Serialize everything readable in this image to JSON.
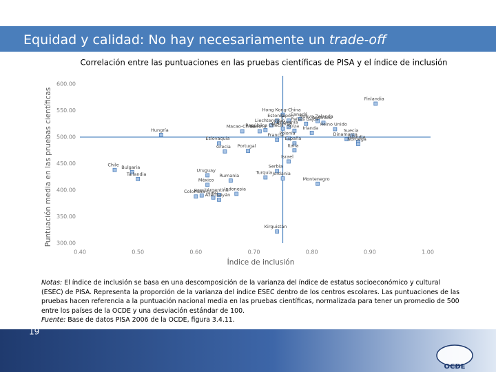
{
  "slide_title": "Equidad y calidad: No hay necesariamente un",
  "slide_title_italic": "trade-off",
  "notes": {
    "label": "Notas:",
    "text": " El índice de inclusión se basa en una descomposición de la varianza del índice de estatus socioeconómico y cultural (ESEC) de PISA. Representa la proporción de la varianza del índice ESEC dentro de los centros escolares. Las puntuaciones de las pruebas hacen referencia a la puntuación nacional media en las pruebas científicas, normalizada para tener un promedio de 500 entre los países de la OCDE y una desviación estándar de 100.",
    "source_label": "Fuente:",
    "source_text": " Base de datos PISA 2006 de la OCDE, figura 3.4.11."
  },
  "page_number": "19",
  "logo_text": "OCDE",
  "chart_data": {
    "type": "scatter",
    "title": "Correlación entre las puntuaciones en las pruebas científicas de PISA y el índice de inclusión",
    "x_label": "Índice de inclusión",
    "y_label": "Puntuación media en las pruebas científicas",
    "xlim": [
      0.4,
      1.0
    ],
    "ylim": [
      300,
      600
    ],
    "xticks": [
      {
        "value": 0.4,
        "label": "0.40"
      },
      {
        "value": 0.5,
        "label": "0.50"
      },
      {
        "value": 0.6,
        "label": "0.60"
      },
      {
        "value": 0.7,
        "label": "0.70"
      },
      {
        "value": 0.8,
        "label": "0.80"
      },
      {
        "value": 0.9,
        "label": "0.90"
      },
      {
        "value": 1.0,
        "label": "1.00"
      }
    ],
    "yticks": [
      {
        "value": 300,
        "label": "300.00"
      },
      {
        "value": 350,
        "label": "350.00"
      },
      {
        "value": 400,
        "label": "400.00"
      },
      {
        "value": 450,
        "label": "450.00"
      },
      {
        "value": 500,
        "label": "500.00"
      },
      {
        "value": 550,
        "label": "550.00"
      },
      {
        "value": 600,
        "label": "600.00"
      }
    ],
    "reference_lines": {
      "x": 0.75,
      "y": 500,
      "color": "#2e6fb5"
    },
    "color": "#4f81bd",
    "labels": [
      "Finlandia",
      "Hong Kong-China",
      "Estonia",
      "Japón",
      "Canadá",
      "Nueva Zelanda",
      "Australia",
      "Países Bajos",
      "Liechtenstein",
      "Eslovenia",
      "Alemania",
      "Reino Unido",
      "República Checa",
      "Suiza",
      "Austria",
      "Macao-China",
      "Irlanda",
      "Hungría",
      "Suecia",
      "Polonia",
      "Dinamarca",
      "Francia",
      "Islandia",
      "Eslovaquia",
      "España",
      "Noruega",
      "Italia",
      "Portugal",
      "Grecia",
      "Israel",
      "Chile",
      "Serbia",
      "Bulgaria",
      "Uruguay",
      "Turquía",
      "Jordania",
      "Tailandia",
      "Rumanía",
      "Montenegro",
      "México",
      "Indonesia",
      "Argentina",
      "Brasil",
      "Colombia",
      "Túnez",
      "Azerbaiyán",
      "Kirguistán"
    ],
    "x": [
      0.91,
      0.75,
      0.74,
      0.76,
      0.78,
      0.81,
      0.82,
      0.79,
      0.73,
      0.76,
      0.75,
      0.84,
      0.72,
      0.77,
      0.71,
      0.68,
      0.8,
      0.54,
      0.87,
      0.76,
      0.86,
      0.74,
      0.88,
      0.64,
      0.77,
      0.88,
      0.77,
      0.69,
      0.65,
      0.76,
      0.46,
      0.74,
      0.49,
      0.62,
      0.72,
      0.75,
      0.5,
      0.66,
      0.81,
      0.62,
      0.67,
      0.64,
      0.61,
      0.6,
      0.63,
      0.64,
      0.74
    ],
    "values": [
      563,
      542,
      531,
      531,
      534,
      530,
      527,
      525,
      522,
      519,
      516,
      515,
      513,
      512,
      511,
      511,
      508,
      504,
      503,
      498,
      496,
      495,
      491,
      488,
      488,
      487,
      475,
      474,
      473,
      454,
      438,
      436,
      434,
      428,
      424,
      422,
      421,
      418,
      412,
      410,
      393,
      391,
      390,
      388,
      386,
      382,
      322
    ]
  }
}
